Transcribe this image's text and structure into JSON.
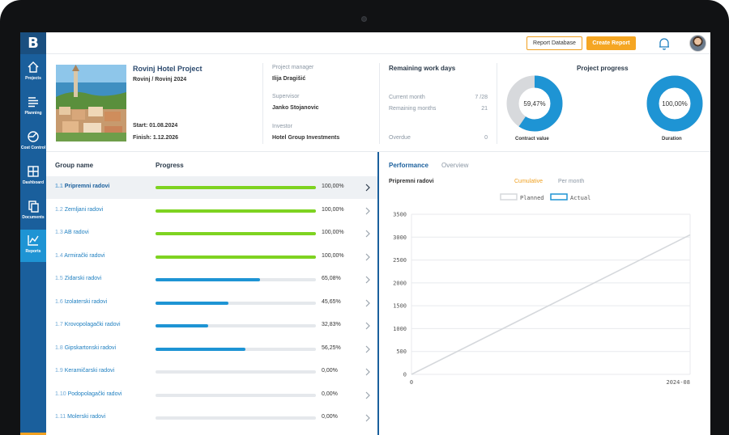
{
  "sidebar": {
    "logo": "B",
    "items": [
      {
        "label": "Projects",
        "icon": "home-icon"
      },
      {
        "label": "Planning",
        "icon": "list-icon"
      },
      {
        "label": "Cost Control",
        "icon": "pie-icon"
      },
      {
        "label": "Dashboard",
        "icon": "dashboard-icon"
      },
      {
        "label": "Documents",
        "icon": "documents-icon"
      },
      {
        "label": "Reports",
        "icon": "chart-icon",
        "active": true
      }
    ]
  },
  "topbar": {
    "report_database": "Report Database",
    "create_report": "Create Report"
  },
  "project": {
    "title": "Rovinj Hotel Project",
    "subtitle": "Rovinj / Rovinj 2024",
    "start": "Start: 01.08.2024",
    "finish": "Finish: 1.12.2026",
    "manager_label": "Project manager",
    "manager": "Ilija Dragišić",
    "supervisor_label": "Supervisor",
    "supervisor": "Janko Stojanovic",
    "investor_label": "Investor",
    "investor": "Hotel Group Investments"
  },
  "remaining": {
    "title": "Remaining work days",
    "current_month_label": "Current month",
    "current_month": "7 /28",
    "remaining_months_label": "Remaining months",
    "remaining_months": "21",
    "overdue_label": "Overdue",
    "overdue": "0"
  },
  "progress": {
    "title": "Project progress",
    "contract": {
      "value": "59,47%",
      "fraction": 0.5947,
      "label": "Contract value"
    },
    "duration": {
      "value": "100,00%",
      "fraction": 1.0,
      "label": "Duration"
    }
  },
  "groups": {
    "header_name": "Group name",
    "header_progress": "Progress",
    "rows": [
      {
        "num": "1.1",
        "name": "Pripremni radovi",
        "pct": "100,00%",
        "value": 100,
        "color": "#7ed321"
      },
      {
        "num": "1.2",
        "name": "Zemljani radovi",
        "pct": "100,00%",
        "value": 100,
        "color": "#7ed321"
      },
      {
        "num": "1.3",
        "name": "AB radovi",
        "pct": "100,00%",
        "value": 100,
        "color": "#7ed321"
      },
      {
        "num": "1.4",
        "name": "Armirački radovi",
        "pct": "100,00%",
        "value": 100,
        "color": "#7ed321"
      },
      {
        "num": "1.5",
        "name": "Zidarski radovi",
        "pct": "65,08%",
        "value": 65.08,
        "color": "#1e94d4"
      },
      {
        "num": "1.6",
        "name": "Izolaterski radovi",
        "pct": "45,65%",
        "value": 45.65,
        "color": "#1e94d4"
      },
      {
        "num": "1.7",
        "name": "Krovopolagački radovi",
        "pct": "32,83%",
        "value": 32.83,
        "color": "#1e94d4"
      },
      {
        "num": "1.8",
        "name": "Gipskartonski radovi",
        "pct": "56,25%",
        "value": 56.25,
        "color": "#1e94d4"
      },
      {
        "num": "1.9",
        "name": "Keramičarski radovi",
        "pct": "0,00%",
        "value": 0,
        "color": "#1e94d4"
      },
      {
        "num": "1.10",
        "name": "Podopolagački radovi",
        "pct": "0,00%",
        "value": 0,
        "color": "#1e94d4"
      },
      {
        "num": "1.11",
        "name": "Molerski radovi",
        "pct": "0,00%",
        "value": 0,
        "color": "#1e94d4"
      }
    ]
  },
  "performance": {
    "tab_performance": "Performance",
    "tab_overview": "Overview",
    "group": "Pripremni radovi",
    "toggle_cumulative": "Cumulative",
    "toggle_per_month": "Per month"
  },
  "chart_data": {
    "type": "line",
    "legend": [
      "Planned",
      "Actual"
    ],
    "legend_position": "top",
    "x_ticks": [
      "0",
      "2024-08"
    ],
    "y_ticks": [
      0,
      500,
      1000,
      1500,
      2000,
      2500,
      3000,
      3500
    ],
    "ylim": [
      0,
      3500
    ],
    "grid": true,
    "series": [
      {
        "name": "Planned",
        "color": "#d5d8dc",
        "x": [
          "0",
          "2024-08"
        ],
        "values": [
          0,
          3050
        ]
      },
      {
        "name": "Actual",
        "color": "#1e94d4",
        "x": [],
        "values": []
      }
    ]
  }
}
